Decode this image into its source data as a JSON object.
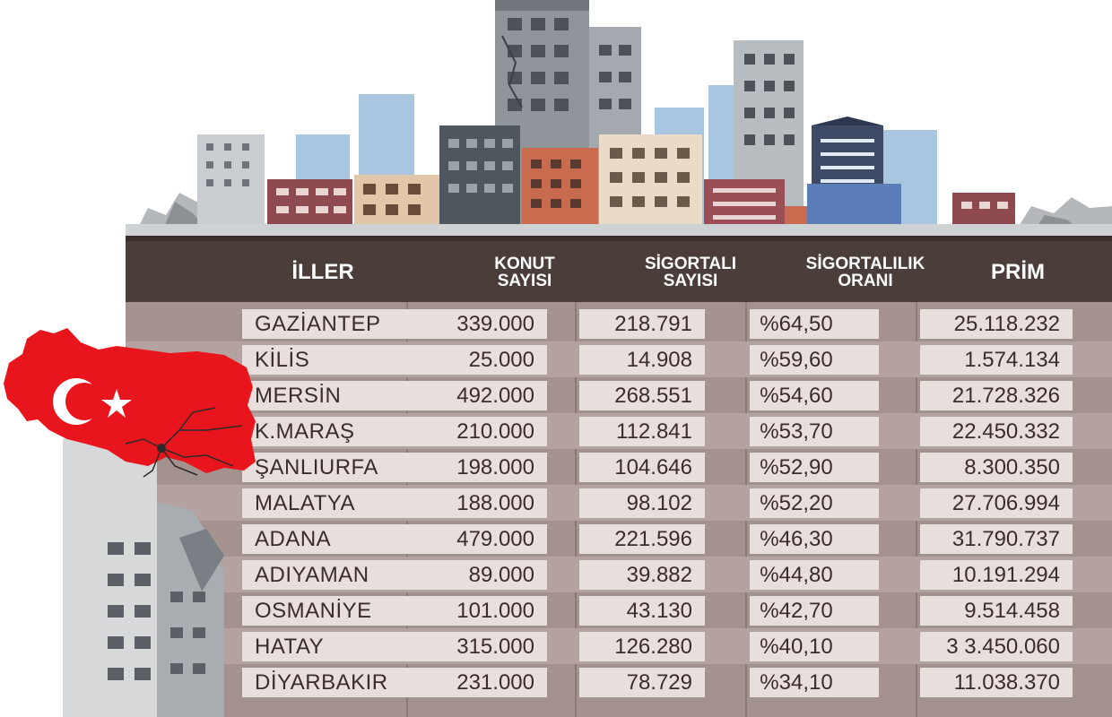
{
  "colors": {
    "header_bg": "#4a3d3a",
    "row_bg": "#e8dfdc",
    "table_bg": "#a4928f",
    "flag_red": "#e8161c"
  },
  "illustration": {
    "skyline": "damaged-city-skyline",
    "side": "turkey-flag-map-with-crack-over-ruined-building"
  },
  "table": {
    "headers": {
      "city": "İLLER",
      "housing": [
        "KONUT",
        "SAYISI"
      ],
      "insured": [
        "SİGORTALI",
        "SAYISI"
      ],
      "rate": [
        "SİGORTALILIK",
        "ORANI"
      ],
      "premium": "PRİM"
    },
    "rows": [
      {
        "city": "GAZİANTEP",
        "housing": "339.000",
        "insured": "218.791",
        "rate": "%64,50",
        "premium": "25.118.232"
      },
      {
        "city": "KİLİS",
        "housing": "25.000",
        "insured": "14.908",
        "rate": "%59,60",
        "premium": "1.574.134"
      },
      {
        "city": "MERSİN",
        "housing": "492.000",
        "insured": "268.551",
        "rate": "%54,60",
        "premium": "21.728.326"
      },
      {
        "city": "K.MARAŞ",
        "housing": "210.000",
        "insured": "112.841",
        "rate": "%53,70",
        "premium": "22.450.332"
      },
      {
        "city": "ŞANLIURFA",
        "housing": "198.000",
        "insured": "104.646",
        "rate": "%52,90",
        "premium": "8.300.350"
      },
      {
        "city": "MALATYA",
        "housing": "188.000",
        "insured": "98.102",
        "rate": "%52,20",
        "premium": "27.706.994"
      },
      {
        "city": "ADANA",
        "housing": "479.000",
        "insured": "221.596",
        "rate": "%46,30",
        "premium": "31.790.737"
      },
      {
        "city": "ADIYAMAN",
        "housing": "89.000",
        "insured": "39.882",
        "rate": "%44,80",
        "premium": "10.191.294"
      },
      {
        "city": "OSMANİYE",
        "housing": "101.000",
        "insured": "43.130",
        "rate": "%42,70",
        "premium": "9.514.458"
      },
      {
        "city": "HATAY",
        "housing": "315.000",
        "insured": "126.280",
        "rate": "%40,10",
        "premium": "3 3.450.060"
      },
      {
        "city": "DİYARBAKIR",
        "housing": "231.000",
        "insured": "78.729",
        "rate": "%34,10",
        "premium": "11.038.370"
      }
    ]
  }
}
